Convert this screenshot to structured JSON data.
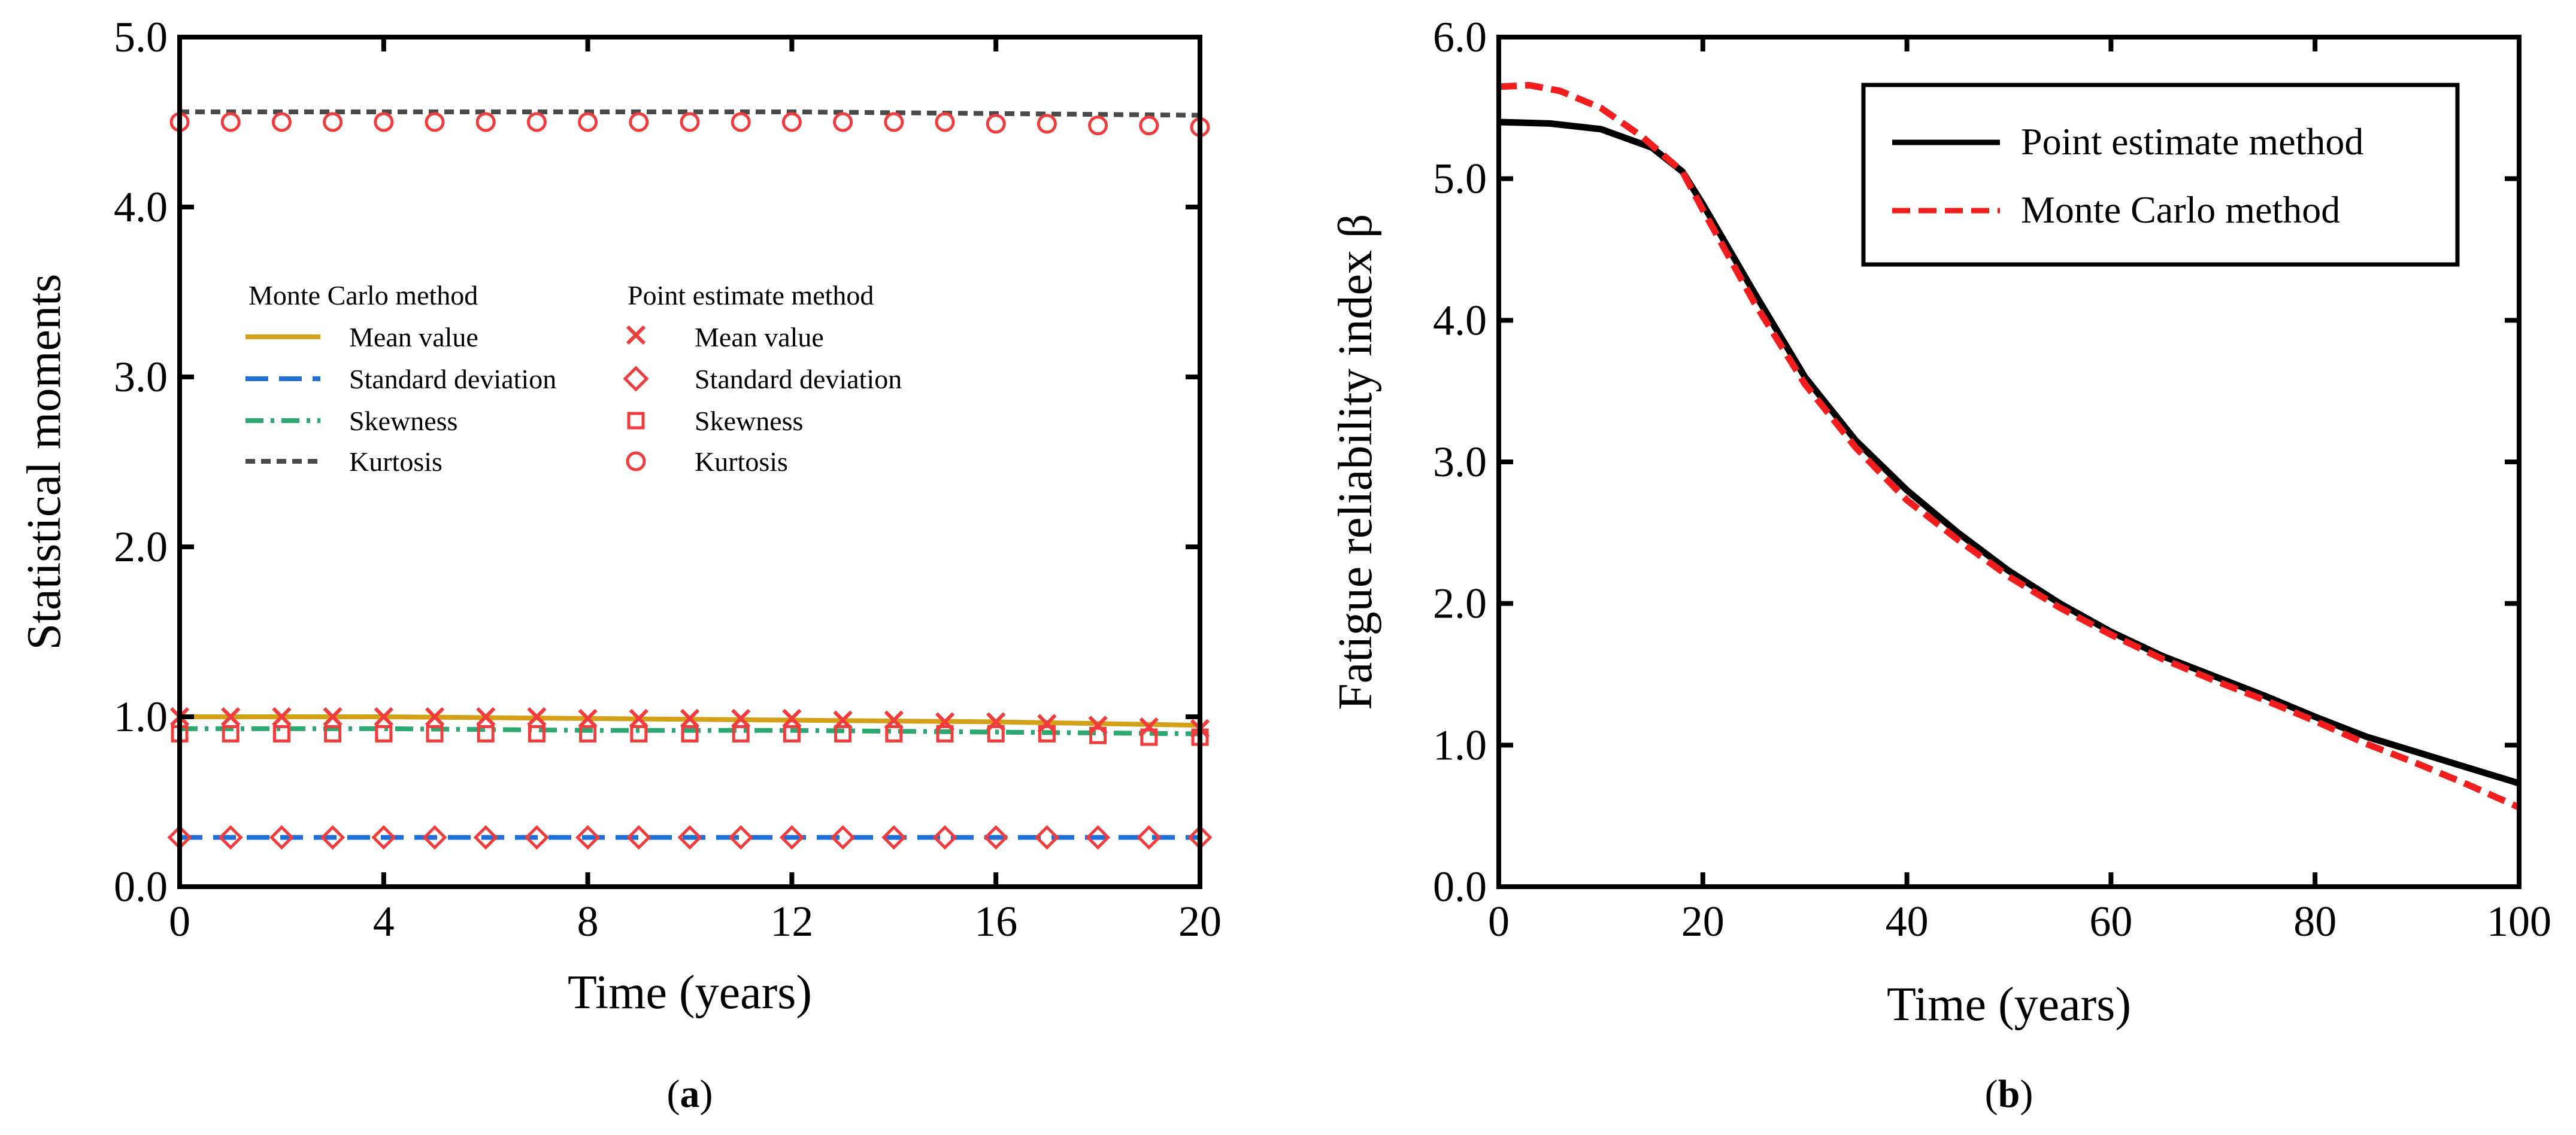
{
  "figure": {
    "panel_a_label": "a",
    "panel_b_label": "b"
  },
  "chart_data": [
    {
      "panel": "a",
      "type": "line",
      "title": "",
      "xlabel": "Time  (years)",
      "ylabel": "Statistical moments",
      "xlim": [
        0,
        20
      ],
      "ylim": [
        0,
        5
      ],
      "xticks": [
        0,
        4,
        8,
        12,
        16,
        20
      ],
      "yticks": [
        0,
        1,
        2,
        3,
        4,
        5
      ],
      "xtick_labels": [
        "0",
        "4",
        "8",
        "12",
        "16",
        "20"
      ],
      "ytick_labels": [
        "0.0",
        "1.0",
        "2.0",
        "3.0",
        "4.0",
        "5.0"
      ],
      "legend_headers": [
        "Monte Carlo method",
        "Point estimate method"
      ],
      "series": [
        {
          "group": "Monte Carlo method",
          "name": "Mean value",
          "style": "solid",
          "color": "#D4A017",
          "x": [
            0,
            4,
            8,
            12,
            16,
            20
          ],
          "y": [
            1.0,
            1.0,
            0.99,
            0.98,
            0.97,
            0.95
          ]
        },
        {
          "group": "Monte Carlo method",
          "name": "Standard deviation",
          "style": "dash",
          "color": "#1F6FD6",
          "x": [
            0,
            20
          ],
          "y": [
            0.29,
            0.29
          ]
        },
        {
          "group": "Monte Carlo method",
          "name": "Skewness",
          "style": "dashdot",
          "color": "#2DA870",
          "x": [
            0,
            4,
            8,
            12,
            16,
            20
          ],
          "y": [
            0.93,
            0.93,
            0.92,
            0.92,
            0.91,
            0.9
          ]
        },
        {
          "group": "Monte Carlo method",
          "name": "Kurtosis",
          "style": "shortdash",
          "color": "#4A4A4A",
          "x": [
            0,
            4,
            8,
            12,
            16,
            20
          ],
          "y": [
            4.56,
            4.56,
            4.56,
            4.56,
            4.55,
            4.54
          ]
        },
        {
          "group": "Point estimate method",
          "name": "Mean value",
          "marker": "x",
          "color": "#F03C3C",
          "x": [
            0,
            1,
            2,
            3,
            4,
            5,
            6,
            7,
            8,
            9,
            10,
            11,
            12,
            13,
            14,
            15,
            16,
            17,
            18,
            19,
            20
          ],
          "y": [
            1.0,
            1.0,
            1.0,
            1.0,
            1.0,
            1.0,
            1.0,
            1.0,
            0.99,
            0.99,
            0.99,
            0.99,
            0.99,
            0.98,
            0.98,
            0.97,
            0.97,
            0.96,
            0.95,
            0.94,
            0.93
          ]
        },
        {
          "group": "Point estimate method",
          "name": "Standard deviation",
          "marker": "diamond",
          "color": "#F03C3C",
          "x": [
            0,
            1,
            2,
            3,
            4,
            5,
            6,
            7,
            8,
            9,
            10,
            11,
            12,
            13,
            14,
            15,
            16,
            17,
            18,
            19,
            20
          ],
          "y": [
            0.29,
            0.29,
            0.29,
            0.29,
            0.29,
            0.29,
            0.29,
            0.29,
            0.29,
            0.29,
            0.29,
            0.29,
            0.29,
            0.29,
            0.29,
            0.29,
            0.29,
            0.29,
            0.29,
            0.29,
            0.29
          ]
        },
        {
          "group": "Point estimate method",
          "name": "Skewness",
          "marker": "square",
          "color": "#F03C3C",
          "x": [
            0,
            1,
            2,
            3,
            4,
            5,
            6,
            7,
            8,
            9,
            10,
            11,
            12,
            13,
            14,
            15,
            16,
            17,
            18,
            19,
            20
          ],
          "y": [
            0.9,
            0.9,
            0.9,
            0.9,
            0.9,
            0.9,
            0.9,
            0.9,
            0.9,
            0.9,
            0.9,
            0.9,
            0.9,
            0.9,
            0.9,
            0.9,
            0.9,
            0.9,
            0.89,
            0.88,
            0.88
          ]
        },
        {
          "group": "Point estimate method",
          "name": "Kurtosis",
          "marker": "circle",
          "color": "#F03C3C",
          "x": [
            0,
            1,
            2,
            3,
            4,
            5,
            6,
            7,
            8,
            9,
            10,
            11,
            12,
            13,
            14,
            15,
            16,
            17,
            18,
            19,
            20
          ],
          "y": [
            4.5,
            4.5,
            4.5,
            4.5,
            4.5,
            4.5,
            4.5,
            4.5,
            4.5,
            4.5,
            4.5,
            4.5,
            4.5,
            4.5,
            4.5,
            4.5,
            4.49,
            4.49,
            4.48,
            4.48,
            4.47
          ]
        }
      ]
    },
    {
      "panel": "b",
      "type": "line",
      "title": "",
      "xlabel": "Time  (years)",
      "ylabel": "Fatigue reliability index β",
      "xlim": [
        0,
        100
      ],
      "ylim": [
        0,
        6
      ],
      "xticks": [
        0,
        20,
        40,
        60,
        80,
        100
      ],
      "yticks": [
        0,
        1,
        2,
        3,
        4,
        5,
        6
      ],
      "xtick_labels": [
        "0",
        "20",
        "40",
        "60",
        "80",
        "100"
      ],
      "ytick_labels": [
        "0.0",
        "1.0",
        "2.0",
        "3.0",
        "4.0",
        "5.0",
        "6.0"
      ],
      "legend_position": "top-right",
      "series": [
        {
          "name": "Point estimate method",
          "style": "solid",
          "color": "#000000",
          "x": [
            0,
            5,
            10,
            15,
            18,
            20,
            25,
            30,
            35,
            40,
            45,
            50,
            55,
            60,
            65,
            70,
            75,
            80,
            85,
            90,
            95,
            100
          ],
          "y": [
            5.4,
            5.39,
            5.35,
            5.22,
            5.05,
            4.82,
            4.2,
            3.6,
            3.15,
            2.8,
            2.5,
            2.23,
            2.0,
            1.8,
            1.63,
            1.49,
            1.35,
            1.2,
            1.06,
            0.95,
            0.84,
            0.73
          ]
        },
        {
          "name": "Monte Carlo method",
          "style": "dash",
          "color": "#F21D1D",
          "x": [
            0,
            3,
            6,
            10,
            14,
            18,
            20,
            25,
            30,
            35,
            40,
            45,
            50,
            55,
            60,
            65,
            70,
            75,
            80,
            85,
            90,
            95,
            100
          ],
          "y": [
            5.65,
            5.66,
            5.62,
            5.5,
            5.3,
            5.05,
            4.78,
            4.13,
            3.55,
            3.1,
            2.73,
            2.45,
            2.19,
            1.97,
            1.78,
            1.61,
            1.46,
            1.32,
            1.17,
            1.01,
            0.87,
            0.72,
            0.56
          ]
        }
      ]
    }
  ]
}
